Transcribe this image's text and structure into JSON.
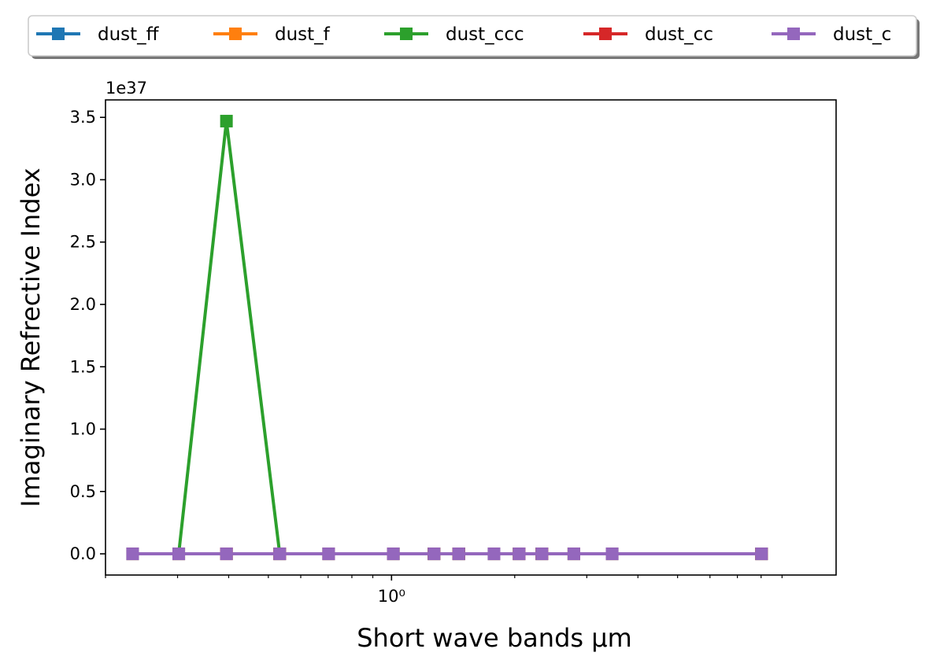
{
  "chart_data": {
    "type": "line",
    "xlabel": "Short wave bands μm",
    "ylabel": "Imaginary Refrective Index",
    "y_offset_label": "1e37",
    "x_scale": "log",
    "xlim": [
      0.2,
      12.2
    ],
    "ylim": [
      -1.7e+36,
      3.64e+37
    ],
    "x_major_ticks": [
      {
        "value": 1,
        "label": "10⁰"
      }
    ],
    "x_minor_ticks": [
      0.2,
      0.3,
      0.4,
      0.5,
      0.6,
      0.7,
      0.8,
      0.9,
      2,
      3,
      4,
      5,
      6,
      7,
      8,
      9
    ],
    "y_ticks": [
      {
        "value": 0,
        "label": "0.0"
      },
      {
        "value": 5e+36,
        "label": "0.5"
      },
      {
        "value": 1e+37,
        "label": "1.0"
      },
      {
        "value": 1.5e+37,
        "label": "1.5"
      },
      {
        "value": 2e+37,
        "label": "2.0"
      },
      {
        "value": 2.5e+37,
        "label": "2.5"
      },
      {
        "value": 3e+37,
        "label": "3.0"
      },
      {
        "value": 3.5e+37,
        "label": "3.5"
      }
    ],
    "grid": false,
    "legend_position": "top-center",
    "x": [
      0.233,
      0.302,
      0.395,
      0.533,
      0.702,
      1.01,
      1.27,
      1.46,
      1.78,
      2.05,
      2.33,
      2.79,
      3.46,
      8.02
    ],
    "series": [
      {
        "name": "dust_ff",
        "color": "#1f77b4",
        "marker": "square",
        "values": [
          0,
          0,
          0,
          0,
          0,
          0,
          0,
          0,
          0,
          0,
          0,
          0,
          0,
          0
        ]
      },
      {
        "name": "dust_f",
        "color": "#ff7f0e",
        "marker": "square",
        "values": [
          0,
          0,
          0,
          0,
          0,
          0,
          0,
          0,
          0,
          0,
          0,
          0,
          0,
          0
        ]
      },
      {
        "name": "dust_ccc",
        "color": "#2ca02c",
        "marker": "square",
        "values": [
          0,
          0,
          3.47e+37,
          0,
          0,
          0,
          0,
          0,
          0,
          0,
          0,
          0,
          0,
          0
        ]
      },
      {
        "name": "dust_cc",
        "color": "#d62728",
        "marker": "square",
        "values": [
          0,
          0,
          0,
          0,
          0,
          0,
          0,
          0,
          0,
          0,
          0,
          0,
          0,
          0
        ]
      },
      {
        "name": "dust_c",
        "color": "#9467bd",
        "marker": "square",
        "values": [
          0,
          0,
          0,
          0,
          0,
          0,
          0,
          0,
          0,
          0,
          0,
          0,
          0,
          0
        ]
      }
    ]
  }
}
